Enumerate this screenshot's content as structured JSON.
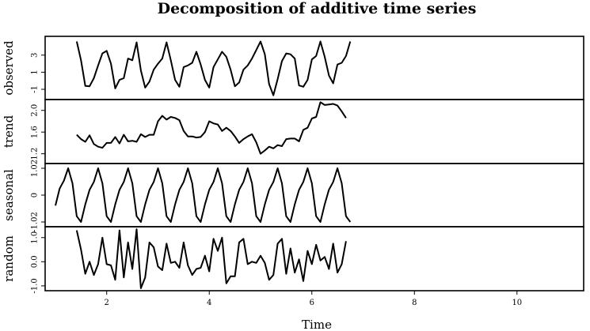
{
  "chart_data": {
    "type": "line",
    "title": "Decomposition of additive time series",
    "xlabel": "Time",
    "xlim": [
      0.8,
      11.3
    ],
    "xticks": [
      2,
      4,
      6,
      8,
      10
    ],
    "xtick_labels": [
      "2",
      "4",
      "6",
      "8",
      "10"
    ],
    "frequency": 12,
    "start": 1.0,
    "panels": [
      {
        "name": "observed",
        "ylim": [
          -2.2,
          5.2
        ],
        "yticks": [
          -1,
          1,
          3
        ],
        "ytick_labels": [
          "-1",
          "1",
          "3"
        ],
        "start": 1.4167,
        "values": [
          4.6,
          2.4,
          -0.6,
          -0.65,
          0.3,
          1.8,
          3.2,
          3.5,
          2.0,
          -0.9,
          0.1,
          0.3,
          2.6,
          2.4,
          4.5,
          1.2,
          -0.8,
          -0.1,
          1.3,
          2.0,
          2.6,
          4.5,
          2.4,
          0.1,
          -0.7,
          1.6,
          1.8,
          2.1,
          3.4,
          1.9,
          0.1,
          -0.8,
          1.6,
          2.5,
          3.4,
          2.8,
          1.3,
          -0.65,
          -0.2,
          1.3,
          1.8,
          2.6,
          3.6,
          4.6,
          3.1,
          -0.4,
          -1.7,
          0.2,
          2.3,
          3.2,
          3.1,
          2.6,
          -0.55,
          -0.7,
          0.1,
          2.5,
          2.9,
          4.6,
          2.8,
          0.6,
          -0.3,
          1.9,
          2.1,
          2.9,
          4.6
        ]
      },
      {
        "name": "trend",
        "ylim": [
          1.02,
          2.2
        ],
        "yticks": [
          1.2,
          1.6,
          2.0
        ],
        "ytick_labels": [
          "1.2",
          "1.6",
          "2.0"
        ],
        "start": 1.4167,
        "values": [
          1.55,
          1.47,
          1.42,
          1.54,
          1.38,
          1.33,
          1.31,
          1.4,
          1.4,
          1.51,
          1.39,
          1.55,
          1.43,
          1.44,
          1.42,
          1.56,
          1.51,
          1.55,
          1.55,
          1.8,
          1.9,
          1.83,
          1.88,
          1.86,
          1.82,
          1.62,
          1.52,
          1.52,
          1.5,
          1.51,
          1.6,
          1.8,
          1.76,
          1.74,
          1.62,
          1.68,
          1.62,
          1.52,
          1.4,
          1.47,
          1.52,
          1.56,
          1.41,
          1.2,
          1.26,
          1.33,
          1.3,
          1.36,
          1.34,
          1.47,
          1.48,
          1.48,
          1.43,
          1.64,
          1.68,
          1.85,
          1.88,
          2.15,
          2.1,
          2.11,
          2.12,
          2.09,
          1.98,
          1.86
        ]
      },
      {
        "name": "seasonal",
        "ylim": [
          -1.2,
          1.2
        ],
        "yticks": [
          -1.02,
          0,
          1.02
        ],
        "ytick_labels": [
          "-1.02",
          "0",
          "1.02"
        ],
        "start": 1.0,
        "values": [
          -0.4,
          0.25,
          0.55,
          1.02,
          0.45,
          -0.8,
          -1.02,
          -0.35,
          0.2,
          0.5,
          1.02,
          0.45,
          -0.8,
          -1.02,
          -0.35,
          0.2,
          0.5,
          1.02,
          0.45,
          -0.8,
          -1.02,
          -0.35,
          0.2,
          0.5,
          1.02,
          0.45,
          -0.8,
          -1.02,
          -0.35,
          0.2,
          0.5,
          1.02,
          0.45,
          -0.8,
          -1.02,
          -0.35,
          0.2,
          0.5,
          1.02,
          0.45,
          -0.8,
          -1.02,
          -0.35,
          0.2,
          0.5,
          1.02,
          0.45,
          -0.8,
          -1.02,
          -0.35,
          0.2,
          0.5,
          1.02,
          0.45,
          -0.8,
          -1.02,
          -0.35,
          0.2,
          0.5,
          1.02,
          0.45,
          -0.8,
          -1.02,
          -0.35,
          0.2,
          0.5,
          1.02,
          0.45,
          -0.8,
          -1.02
        ]
      },
      {
        "name": "random",
        "ylim": [
          -1.2,
          1.45
        ],
        "yticks": [
          -1.0,
          0.0,
          1.0
        ],
        "ytick_labels": [
          "-1.0",
          "0.0",
          "1.0"
        ],
        "start": 1.4167,
        "values": [
          1.3,
          0.5,
          -0.5,
          0.0,
          -0.55,
          -0.1,
          1.0,
          -0.1,
          -0.15,
          -0.75,
          1.3,
          -0.65,
          0.8,
          -0.3,
          1.35,
          -1.1,
          -0.65,
          0.8,
          0.6,
          -0.2,
          -0.35,
          0.75,
          -0.05,
          0.0,
          -0.25,
          0.8,
          -0.15,
          -0.55,
          -0.3,
          -0.25,
          0.25,
          -0.4,
          0.95,
          0.45,
          1.0,
          -0.9,
          -0.6,
          -0.6,
          0.8,
          0.95,
          -0.1,
          0.0,
          -0.05,
          0.25,
          -0.05,
          -0.75,
          -0.55,
          0.75,
          0.95,
          -0.5,
          0.55,
          -0.45,
          0.1,
          -0.8,
          0.45,
          -0.1,
          0.7,
          0.05,
          0.2,
          -0.3,
          0.75,
          -0.45,
          -0.1,
          0.85
        ]
      }
    ]
  }
}
